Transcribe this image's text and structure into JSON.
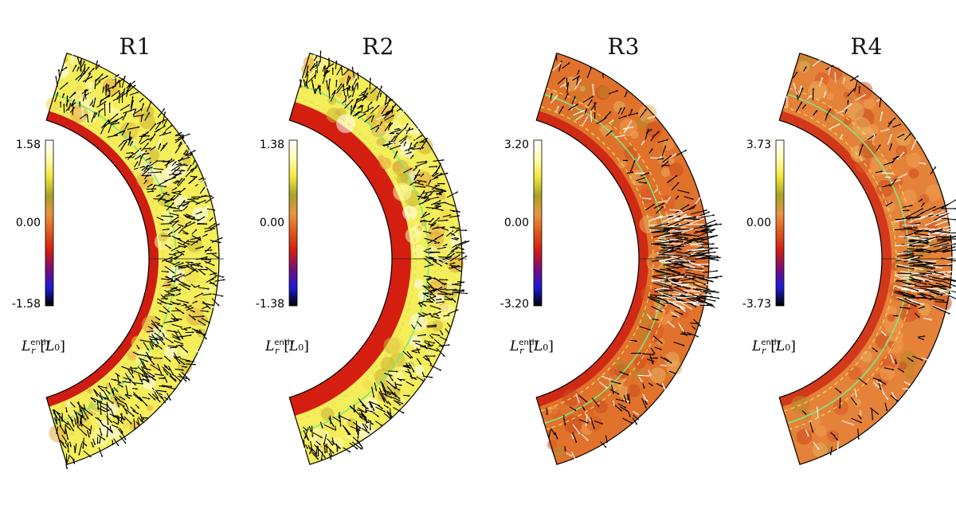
{
  "chart_data": {
    "type": "heatmap",
    "description_of_field": "enthalpy luminosity in meridional half-shell",
    "colorbar_label": {
      "symbol": "L",
      "subscript": "r",
      "superscript": "enth",
      "unit_symbol": "L",
      "unit_subscript": "0"
    },
    "colormap": [
      "#000000",
      "#1b1bd6",
      "#7a0d7a",
      "#cf1d12",
      "#e0581c",
      "#e8963e",
      "#a8a228",
      "#f4e63a",
      "#fdfdb0",
      "#ffffff"
    ],
    "overlay_colors": {
      "vectors": "#000000",
      "secondary_vectors": "#ffffff",
      "contour_solid": "#7de87d",
      "contour_dashed": "#f0d85a",
      "outline": "#000000"
    },
    "panels": [
      {
        "title": "R1",
        "cmin": -1.58,
        "cmax": 1.58,
        "tick_labels": [
          "1.58",
          "0.00",
          "-1.58"
        ],
        "dominant_color": "#f4ee5a",
        "inner_band_color": "#cf1d12",
        "vector_density": "very high"
      },
      {
        "title": "R2",
        "cmin": -1.38,
        "cmax": 1.38,
        "tick_labels": [
          "1.38",
          "0.00",
          "-1.38"
        ],
        "dominant_color": "#f4ee5a",
        "inner_band_color": "#d41f10",
        "vector_density": "high, outer layer only"
      },
      {
        "title": "R3",
        "cmin": -3.2,
        "cmax": 3.2,
        "tick_labels": [
          "3.20",
          "0.00",
          "-3.20"
        ],
        "dominant_color": "#e0722c",
        "inner_band_color": "#cf2a14",
        "vector_density": "concentrated near equator"
      },
      {
        "title": "R4",
        "cmin": -3.73,
        "cmax": 3.73,
        "tick_labels": [
          "3.73",
          "0.00",
          "-3.73"
        ],
        "dominant_color": "#e5823a",
        "inner_band_color": "#d2381a",
        "vector_density": "sparse, equatorial jet"
      }
    ]
  }
}
